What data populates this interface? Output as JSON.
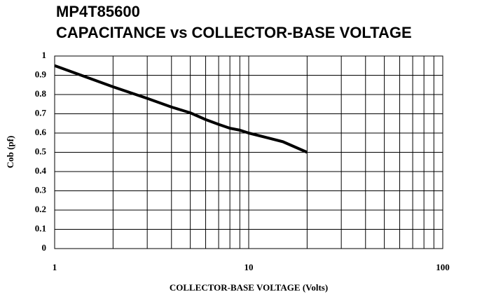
{
  "chart_data": {
    "type": "line",
    "title": "MP4T85600",
    "subtitle": "CAPACITANCE vs COLLECTOR-BASE VOLTAGE",
    "x_label": "COLLECTOR-BASE VOLTAGE (Volts)",
    "y_label": "Cob (pf)",
    "x": [
      1,
      2,
      3,
      4,
      5,
      6,
      7,
      8,
      9,
      10,
      15,
      20
    ],
    "series": [
      {
        "color": "#000000",
        "values": [
          0.95,
          0.84,
          0.78,
          0.735,
          0.705,
          0.67,
          0.645,
          0.625,
          0.615,
          0.6,
          0.555,
          0.5
        ]
      }
    ],
    "xscale": "log",
    "xlim": [
      1,
      100
    ],
    "xticks": [
      1,
      10,
      100
    ],
    "minor_xticks": [
      2,
      3,
      4,
      5,
      6,
      7,
      8,
      9,
      20,
      30,
      40,
      50,
      60,
      70,
      80,
      90
    ],
    "ylim": [
      0,
      1
    ],
    "yticks": [
      0,
      0.1,
      0.2,
      0.3,
      0.4,
      0.5,
      0.6,
      0.7,
      0.8,
      0.9,
      1
    ],
    "grid": true
  }
}
